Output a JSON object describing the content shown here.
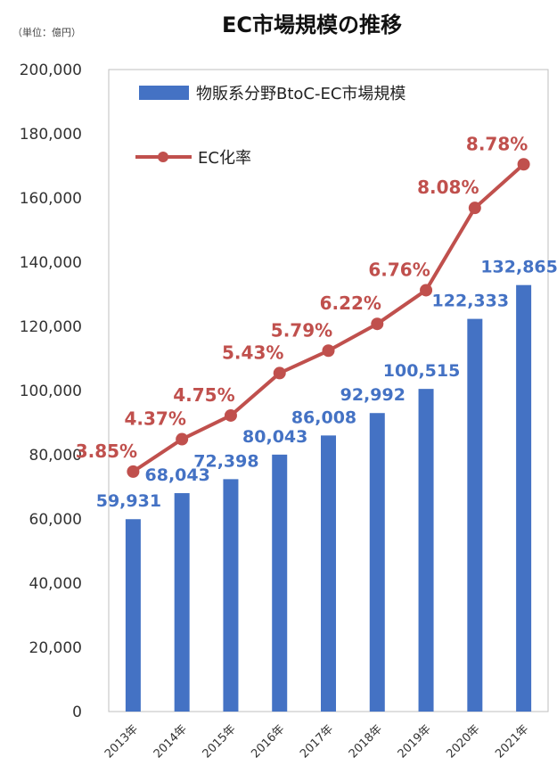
{
  "chart_data": {
    "type": "bar",
    "title": "EC市場規模の推移",
    "unit_label": "（単位：億円）",
    "categories": [
      "2013年",
      "2014年",
      "2015年",
      "2016年",
      "2017年",
      "2018年",
      "2019年",
      "2020年",
      "2021年"
    ],
    "series": [
      {
        "name": "物販系分野BtoC-EC市場規模",
        "type": "bar",
        "values": [
          59931,
          68043,
          72398,
          80043,
          86008,
          92992,
          100515,
          122333,
          132865
        ],
        "labels": [
          "59,931",
          "68,043",
          "72,398",
          "80,043",
          "86,008",
          "92,992",
          "100,515",
          "122,333",
          "132,865"
        ],
        "color": "#4472C4"
      },
      {
        "name": "EC化率",
        "type": "line",
        "values": [
          3.85,
          4.37,
          4.75,
          5.43,
          5.79,
          6.22,
          6.76,
          8.08,
          8.78
        ],
        "labels": [
          "3.85%",
          "4.37%",
          "4.75%",
          "5.43%",
          "5.79%",
          "6.22%",
          "6.76%",
          "8.08%",
          "8.78%"
        ],
        "color": "#C0504D"
      }
    ],
    "ylim": [
      0,
      200000
    ],
    "yticks": [
      0,
      20000,
      40000,
      60000,
      80000,
      100000,
      120000,
      140000,
      160000,
      180000,
      200000
    ],
    "ytick_labels": [
      "0",
      "20,000",
      "40,000",
      "60,000",
      "80,000",
      "100,000",
      "120,000",
      "140,000",
      "160,000",
      "180,000",
      "200,000"
    ],
    "grid": false,
    "legend_position": "top-left"
  }
}
